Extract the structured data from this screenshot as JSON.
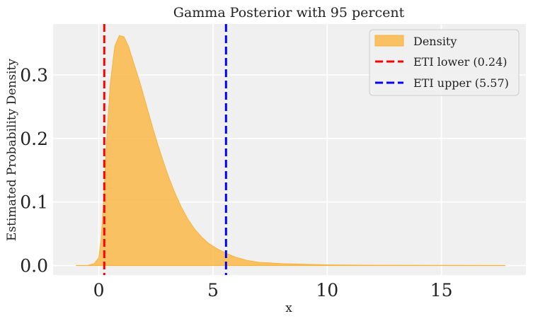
{
  "chart_data": {
    "type": "area",
    "title": "Gamma Posterior with 95 percent",
    "xlabel": "x",
    "ylabel": "Estimated Probability Density",
    "xlim": [
      -2.0,
      18.7
    ],
    "ylim": [
      -0.015,
      0.38
    ],
    "xticks": [
      0,
      5,
      10,
      15
    ],
    "yticks": [
      0.0,
      0.1,
      0.2,
      0.3
    ],
    "xtick_labels": [
      "0",
      "5",
      "10",
      "15"
    ],
    "ytick_labels": [
      "0.0",
      "0.1",
      "0.2",
      "0.3"
    ],
    "grid": true,
    "legend_position": "top-right",
    "series": [
      {
        "name": "Density",
        "kind": "area",
        "color": "#fbb84a",
        "x": [
          -1.0,
          -0.5,
          -0.2,
          0.0,
          0.1,
          0.2,
          0.35,
          0.5,
          0.7,
          0.9,
          1.1,
          1.3,
          1.5,
          1.8,
          2.1,
          2.4,
          2.7,
          3.0,
          3.3,
          3.6,
          3.9,
          4.2,
          4.5,
          4.8,
          5.2,
          5.6,
          6.0,
          6.5,
          7.0,
          7.5,
          8.0,
          9.0,
          10.0,
          11.0,
          12.0,
          14.0,
          16.0,
          17.8
        ],
        "y": [
          0.0,
          0.0,
          0.003,
          0.012,
          0.04,
          0.095,
          0.2,
          0.285,
          0.345,
          0.362,
          0.36,
          0.345,
          0.322,
          0.288,
          0.25,
          0.212,
          0.177,
          0.145,
          0.117,
          0.093,
          0.073,
          0.057,
          0.045,
          0.035,
          0.026,
          0.019,
          0.013,
          0.008,
          0.005,
          0.004,
          0.003,
          0.002,
          0.001,
          0.0007,
          0.0005,
          0.0003,
          0.0001,
          0.0
        ]
      },
      {
        "name": "ETI lower (0.24)",
        "kind": "vline",
        "color": "#ff0000",
        "x": 0.24
      },
      {
        "name": "ETI upper (5.57)",
        "kind": "vline",
        "color": "#0000ff",
        "x": 5.57
      }
    ]
  }
}
